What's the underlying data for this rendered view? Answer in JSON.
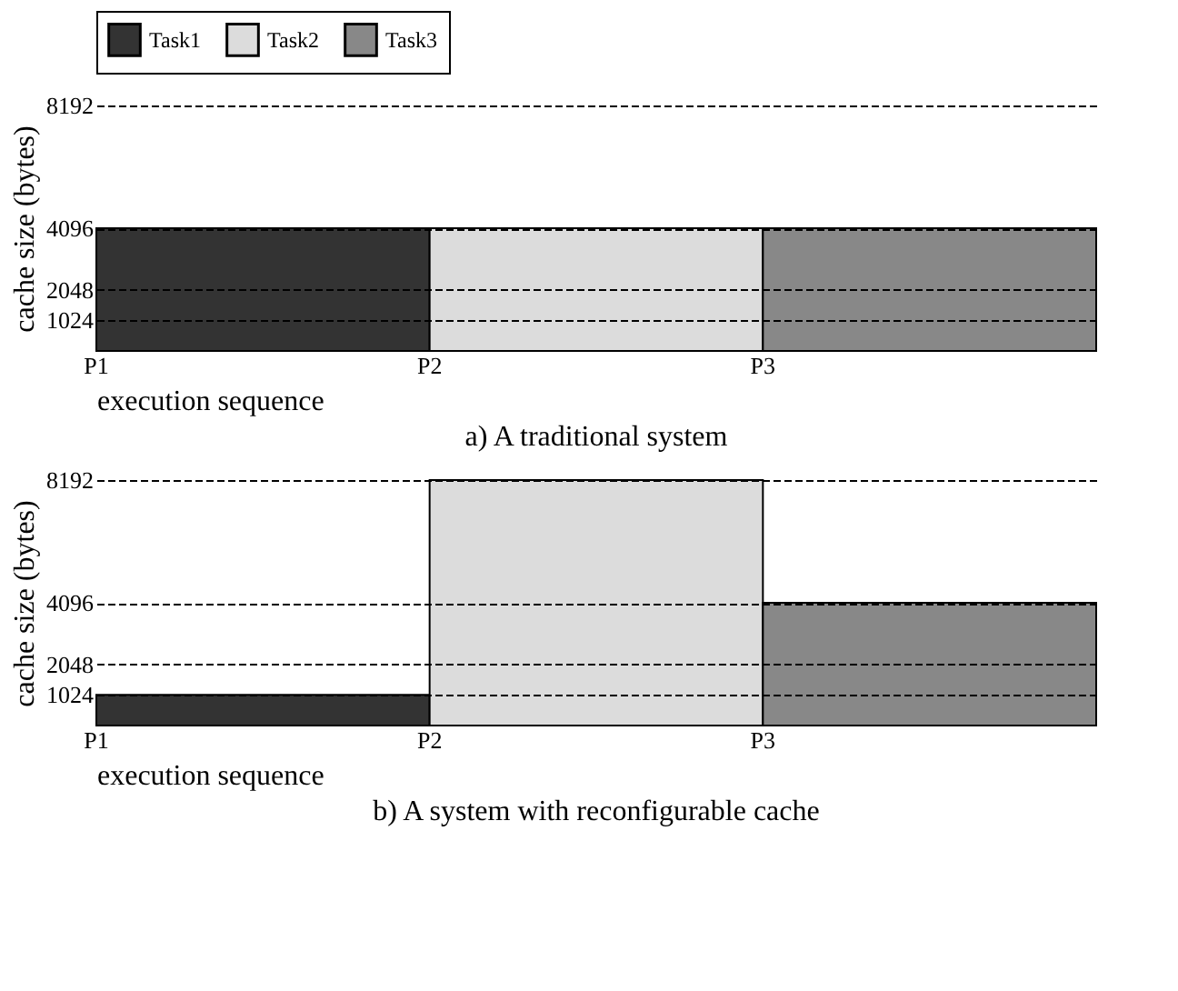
{
  "chart_data": [
    {
      "type": "bar",
      "title": "a) A traditional system",
      "xlabel": "execution sequence",
      "ylabel": "cache size (bytes)",
      "categories": [
        "P1",
        "P2",
        "P3"
      ],
      "ylim": [
        0,
        8192
      ],
      "yticks": [
        1024,
        2048,
        4096,
        8192
      ],
      "grid": "y",
      "line_style": "dashed",
      "legend": "top",
      "series": [
        {
          "name": "Task1",
          "color": "#333333",
          "values": [
            4096,
            null,
            null
          ]
        },
        {
          "name": "Task2",
          "color": "#dcdcdc",
          "values": [
            null,
            4096,
            null
          ]
        },
        {
          "name": "Task3",
          "color": "#888888",
          "values": [
            null,
            null,
            4096
          ]
        }
      ]
    },
    {
      "type": "bar",
      "title": "b) A system with reconfigurable cache",
      "xlabel": "execution sequence",
      "ylabel": "cache size (bytes)",
      "categories": [
        "P1",
        "P2",
        "P3"
      ],
      "ylim": [
        0,
        8192
      ],
      "yticks": [
        1024,
        2048,
        4096,
        8192
      ],
      "grid": "y",
      "line_style": "dashed",
      "legend": false,
      "series": [
        {
          "color": "#333333",
          "values": [
            1024,
            null,
            null
          ]
        },
        {
          "color": "#dcdcdc",
          "values": [
            null,
            8192,
            null
          ]
        },
        {
          "color": "#888888",
          "values": [
            null,
            null,
            4096
          ]
        }
      ]
    }
  ]
}
